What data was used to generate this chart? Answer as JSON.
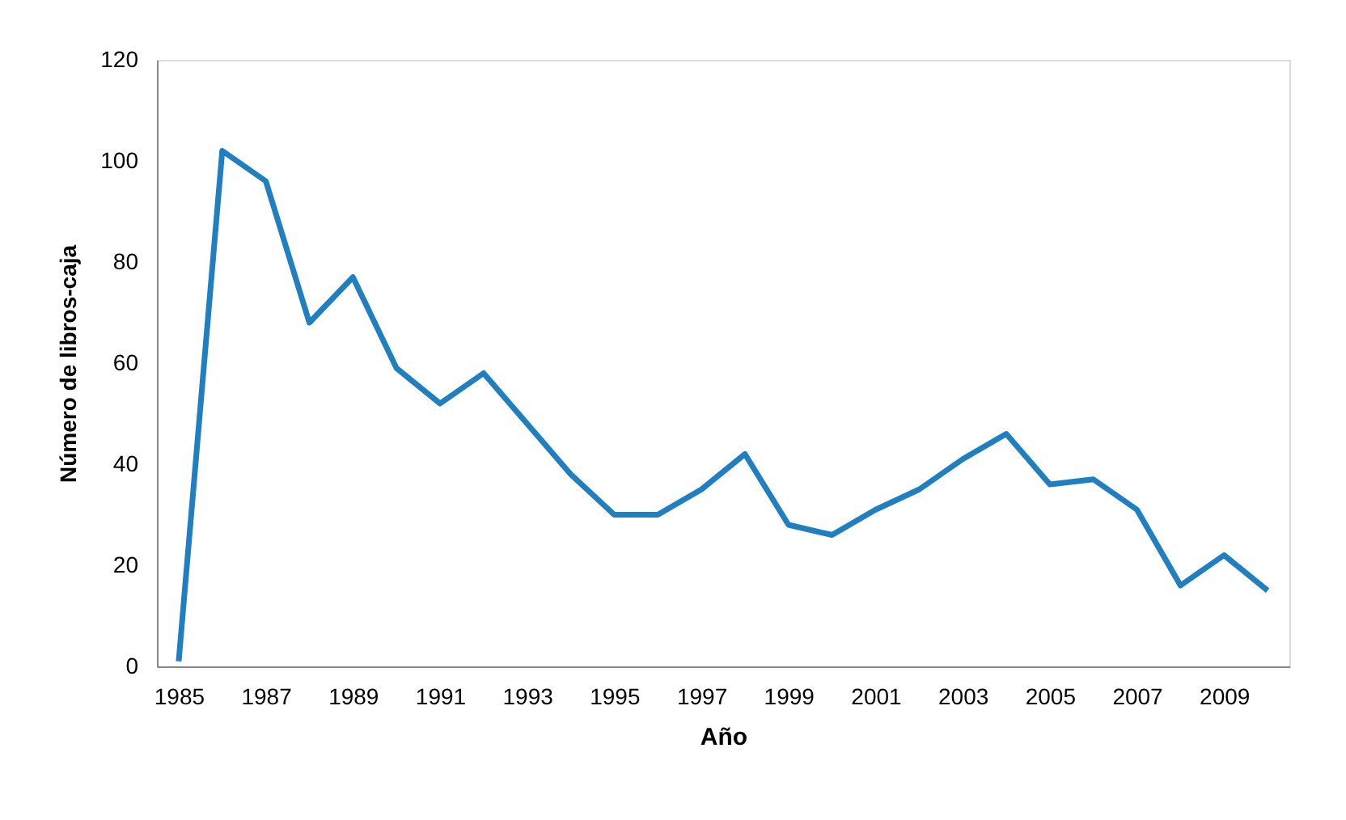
{
  "chart_data": {
    "type": "line",
    "xlabel": "Año",
    "ylabel": "Número de libros-caja",
    "categories": [
      "1985",
      null,
      "1987",
      null,
      "1989",
      null,
      "1991",
      null,
      "1993",
      null,
      "1995",
      null,
      "1997",
      null,
      "1999",
      null,
      "2001",
      null,
      "2003",
      null,
      "2005",
      null,
      "2007",
      null,
      "2009",
      null
    ],
    "series": [
      {
        "color": "#1f7fc0",
        "values": [
          1,
          102,
          96,
          68,
          77,
          59,
          52,
          58,
          48,
          38,
          30,
          30,
          35,
          42,
          28,
          26,
          31,
          35,
          41,
          46,
          36,
          37,
          31,
          16,
          22,
          15
        ]
      }
    ],
    "ylim": [
      0,
      120
    ],
    "yticks": [
      0,
      20,
      40,
      60,
      80,
      100,
      120
    ],
    "grid": false,
    "marker": "none",
    "line_style": "solid"
  }
}
